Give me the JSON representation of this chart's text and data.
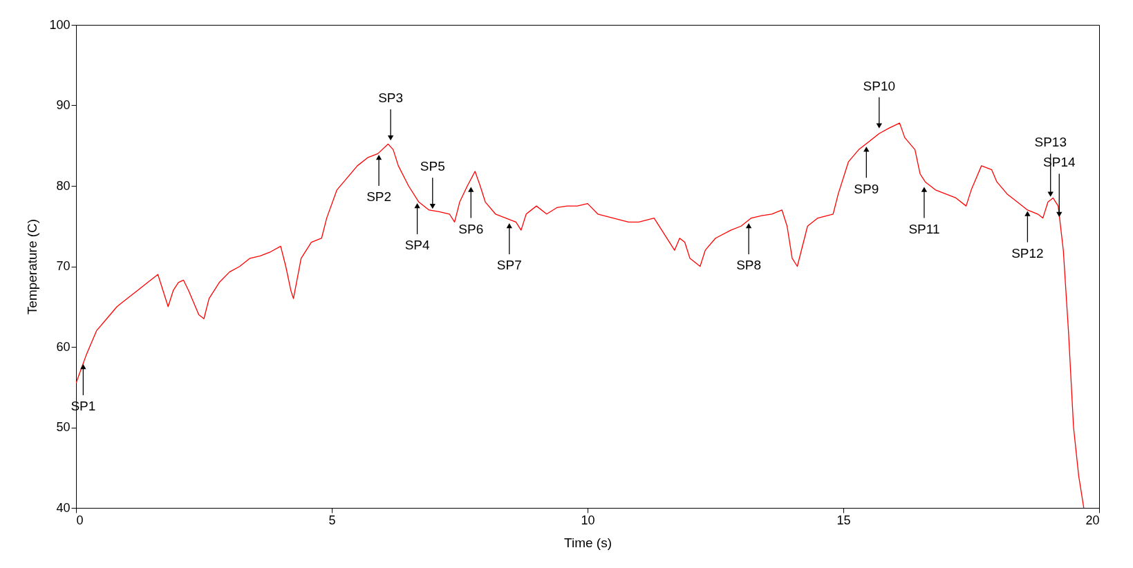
{
  "chart_data": {
    "type": "line",
    "xlabel": "Time (s)",
    "ylabel": "Temperature (C)",
    "color": "#ff0000",
    "x": [
      0,
      0.2,
      0.4,
      0.6,
      0.8,
      1.0,
      1.2,
      1.4,
      1.6,
      1.7,
      1.8,
      1.9,
      2.0,
      2.1,
      2.2,
      2.4,
      2.5,
      2.6,
      2.8,
      3.0,
      3.2,
      3.4,
      3.6,
      3.8,
      4.0,
      4.1,
      4.2,
      4.25,
      4.4,
      4.6,
      4.8,
      4.9,
      5.1,
      5.3,
      5.5,
      5.7,
      5.9,
      6.1,
      6.2,
      6.3,
      6.5,
      6.7,
      6.9,
      7.1,
      7.3,
      7.4,
      7.5,
      7.65,
      7.8,
      7.9,
      8.0,
      8.2,
      8.4,
      8.6,
      8.7,
      8.8,
      9.0,
      9.2,
      9.4,
      9.6,
      9.8,
      10.0,
      10.2,
      10.5,
      10.8,
      11.0,
      11.3,
      11.5,
      11.7,
      11.8,
      11.9,
      12.0,
      12.2,
      12.3,
      12.5,
      12.8,
      13.0,
      13.2,
      13.4,
      13.6,
      13.8,
      13.9,
      14.0,
      14.1,
      14.3,
      14.5,
      14.8,
      14.9,
      15.1,
      15.3,
      15.5,
      15.7,
      15.9,
      16.0,
      16.1,
      16.2,
      16.4,
      16.5,
      16.6,
      16.8,
      17.0,
      17.2,
      17.4,
      17.5,
      17.7,
      17.9,
      18.0,
      18.2,
      18.4,
      18.6,
      18.8,
      18.9,
      19.0,
      19.1,
      19.2,
      19.3,
      19.4,
      19.5,
      19.6,
      19.7
    ],
    "values": [
      55.5,
      59,
      62,
      63.5,
      65,
      66,
      67,
      68,
      69,
      67,
      65,
      67,
      68,
      68.3,
      67,
      64,
      63.5,
      66,
      68,
      69.3,
      70,
      71,
      71.3,
      71.8,
      72.5,
      70,
      67,
      66,
      71,
      73,
      73.5,
      76,
      79.5,
      81,
      82.5,
      83.5,
      84,
      85.2,
      84.5,
      82.5,
      80,
      78,
      77,
      76.8,
      76.5,
      75.5,
      78,
      80,
      81.8,
      80,
      78,
      76.5,
      76,
      75.5,
      74.5,
      76.5,
      77.5,
      76.5,
      77.3,
      77.5,
      77.5,
      77.8,
      76.5,
      76,
      75.5,
      75.5,
      76,
      74,
      72,
      73.5,
      73,
      71,
      70,
      72,
      73.5,
      74.5,
      75,
      76,
      76.3,
      76.5,
      77,
      75,
      71,
      70,
      75,
      76,
      76.5,
      79,
      83,
      84.5,
      85.5,
      86.5,
      87.2,
      87.5,
      87.8,
      86,
      84.5,
      81.5,
      80.5,
      79.5,
      79,
      78.5,
      77.5,
      79.5,
      82.5,
      82,
      80.5,
      79,
      78,
      77,
      76.5,
      76,
      78,
      78.5,
      77.5,
      72,
      62,
      50,
      44,
      40
    ],
    "xlim": [
      0,
      20
    ],
    "xticks": [
      0,
      5,
      10,
      15,
      20
    ],
    "ylim": [
      40,
      100
    ],
    "yticks": [
      40,
      50,
      60,
      70,
      80,
      90,
      100
    ],
    "annotations": [
      {
        "text": "SP1",
        "x": 0.14,
        "y": 58
      },
      {
        "text": "SP2",
        "x": 5.92,
        "y": 84
      },
      {
        "text": "SP3",
        "x": 6.15,
        "y": 85.5
      },
      {
        "text": "SP4",
        "x": 6.67,
        "y": 78
      },
      {
        "text": "SP5",
        "x": 6.97,
        "y": 77
      },
      {
        "text": "SP6",
        "x": 7.72,
        "y": 80
      },
      {
        "text": "SP7",
        "x": 8.47,
        "y": 75.5
      },
      {
        "text": "SP8",
        "x": 13.15,
        "y": 75.5
      },
      {
        "text": "SP9",
        "x": 15.45,
        "y": 85
      },
      {
        "text": "SP10",
        "x": 15.7,
        "y": 87
      },
      {
        "text": "SP11",
        "x": 16.58,
        "y": 80
      },
      {
        "text": "SP12",
        "x": 18.6,
        "y": 77
      },
      {
        "text": "SP13",
        "x": 19.05,
        "y": 78.5
      },
      {
        "text": "SP14",
        "x": 19.22,
        "y": 76
      }
    ]
  }
}
